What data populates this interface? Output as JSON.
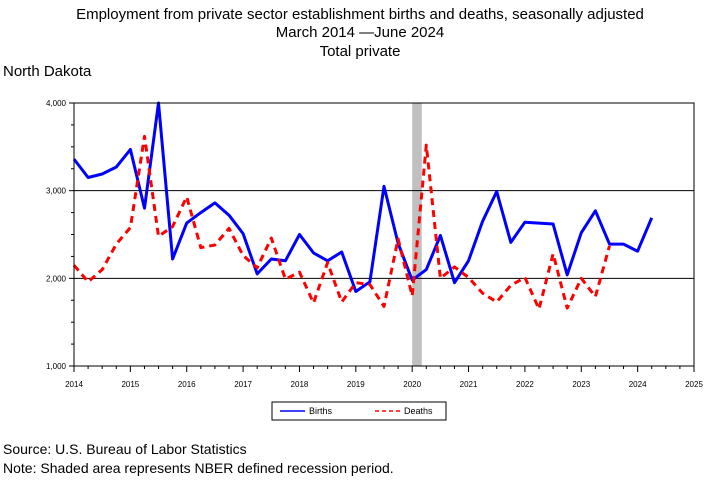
{
  "title": {
    "line1": "Employment from private sector establishment births and deaths, seasonally adjusted",
    "line2": "March 2014  —June 2024",
    "line3": "Total private"
  },
  "region": "North Dakota",
  "source": "Source: U.S. Bureau of Labor Statistics",
  "note": "Note: Shaded area represents NBER defined recession period.",
  "chart_data": {
    "type": "line",
    "xlim": [
      2014,
      2025
    ],
    "ylim": [
      1000,
      4000
    ],
    "x_ticks": [
      "2014",
      "2015",
      "2016",
      "2017",
      "2018",
      "2019",
      "2020",
      "2021",
      "2022",
      "2023",
      "2024",
      "2025"
    ],
    "y_ticks": [
      "1,000",
      "2,000",
      "3,000",
      "4,000"
    ],
    "grid": "horizontal",
    "legend": "bottom-center",
    "recession": [
      2020.0,
      2020.17
    ],
    "colors": {
      "births": "#0000ff",
      "deaths": "#ff0000",
      "recession": "#c0c0c0"
    },
    "series": [
      {
        "name": "Births",
        "style": "solid",
        "x": [
          2014.0,
          2014.25,
          2014.5,
          2014.75,
          2015.0,
          2015.25,
          2015.5,
          2015.75,
          2016.0,
          2016.25,
          2016.5,
          2016.75,
          2017.0,
          2017.25,
          2017.5,
          2017.75,
          2018.0,
          2018.25,
          2018.5,
          2018.75,
          2019.0,
          2019.25,
          2019.5,
          2019.75,
          2020.0,
          2020.25,
          2020.5,
          2020.75,
          2021.0,
          2021.25,
          2021.5,
          2021.75,
          2022.0,
          2022.25,
          2022.5,
          2022.75,
          2023.0,
          2023.25,
          2023.5,
          2023.75,
          2024.0,
          2024.25
        ],
        "values": [
          3360,
          3150,
          3190,
          3270,
          3470,
          2800,
          4000,
          2220,
          2630,
          2750,
          2860,
          2720,
          2510,
          2050,
          2220,
          2200,
          2500,
          2290,
          2200,
          2300,
          1850,
          1960,
          3050,
          2400,
          1980,
          2100,
          2490,
          1950,
          2200,
          2650,
          2990,
          2410,
          2640,
          2630,
          2620,
          2040,
          2520,
          2770,
          2390,
          2390,
          2310,
          2690
        ]
      },
      {
        "name": "Deaths",
        "style": "dashed",
        "x": [
          2014.0,
          2014.25,
          2014.5,
          2014.75,
          2015.0,
          2015.25,
          2015.5,
          2015.75,
          2016.0,
          2016.25,
          2016.5,
          2016.75,
          2017.0,
          2017.25,
          2017.5,
          2017.75,
          2018.0,
          2018.25,
          2018.5,
          2018.75,
          2019.0,
          2019.25,
          2019.5,
          2019.75,
          2020.0,
          2020.25,
          2020.5,
          2020.75,
          2021.0,
          2021.25,
          2021.5,
          2021.75,
          2022.0,
          2022.25,
          2022.5,
          2022.75,
          2023.0,
          2023.25,
          2023.5
        ],
        "values": [
          2150,
          1960,
          2100,
          2390,
          2580,
          3620,
          2480,
          2590,
          2930,
          2350,
          2380,
          2570,
          2260,
          2120,
          2460,
          1990,
          2070,
          1720,
          2180,
          1730,
          1950,
          1930,
          1680,
          2450,
          1800,
          3520,
          2000,
          2130,
          2010,
          1830,
          1730,
          1920,
          2010,
          1650,
          2280,
          1660,
          2000,
          1790,
          2370
        ]
      }
    ]
  }
}
